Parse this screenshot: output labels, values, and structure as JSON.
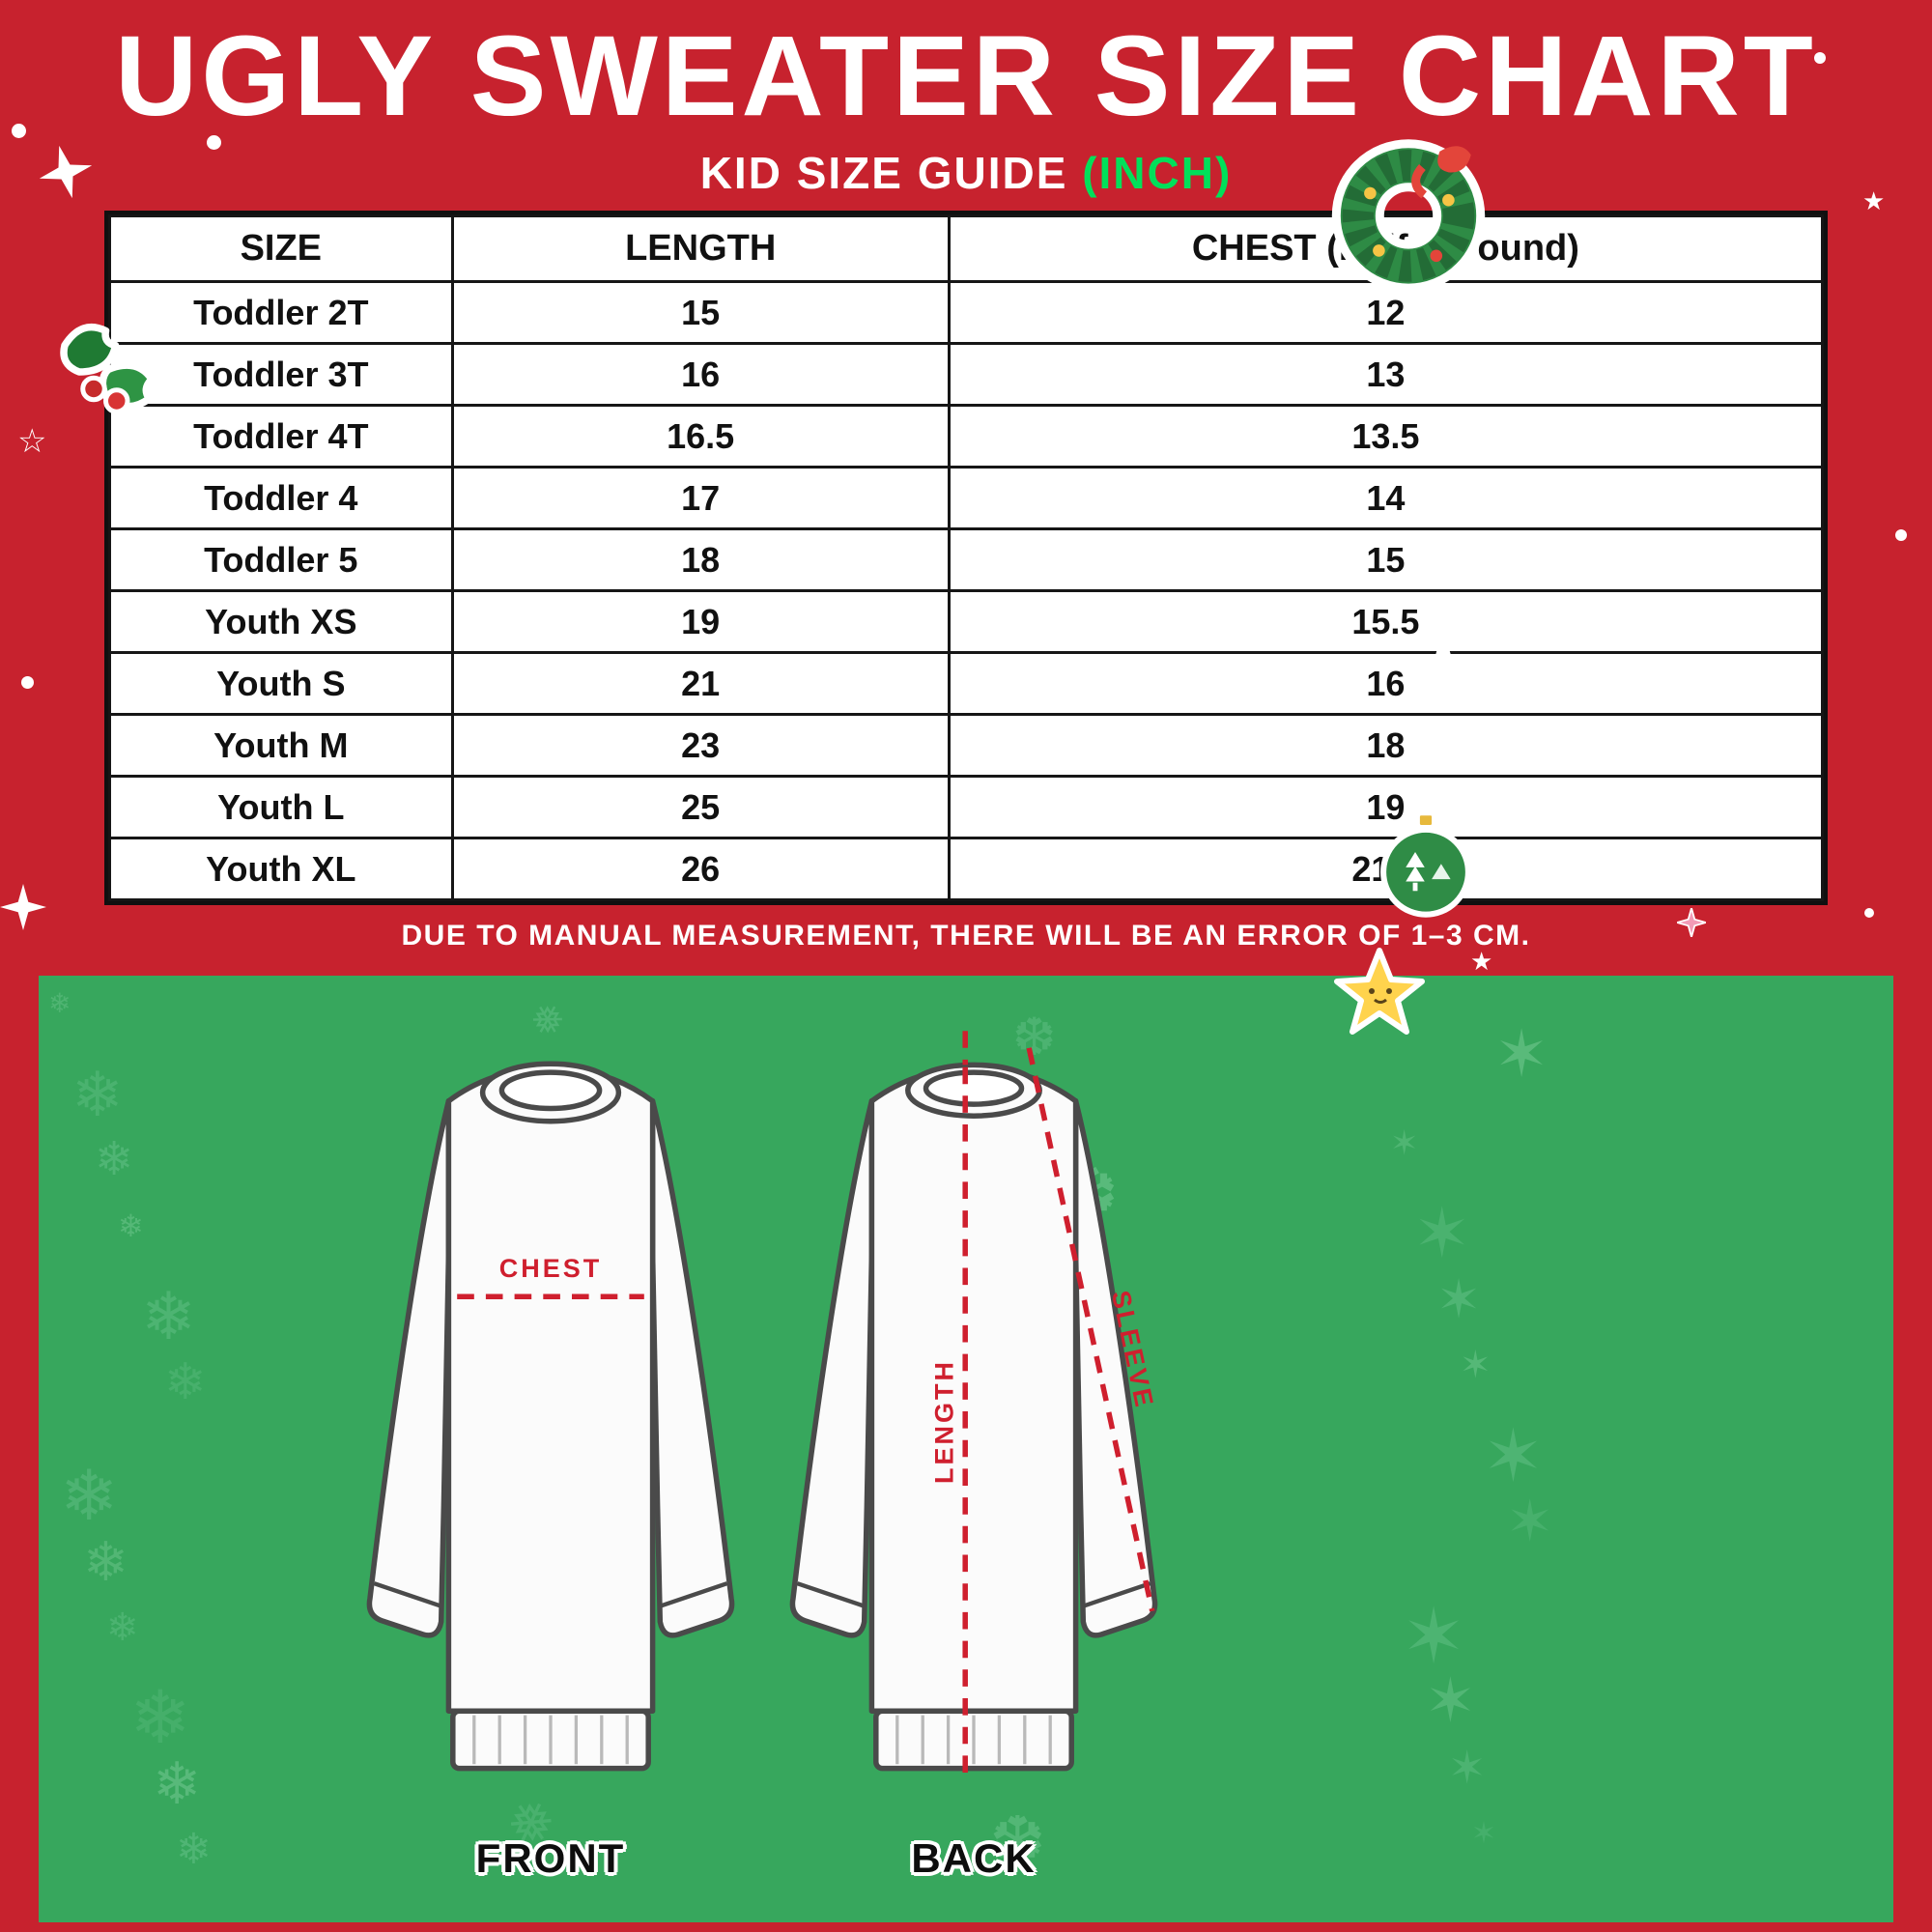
{
  "page": {
    "title": "UGLY SWEATER SIZE CHART",
    "subtitle": "KID SIZE GUIDE",
    "subtitle_unit": "(INCH)",
    "note": "DUE TO MANUAL MEASUREMENT, THERE WILL BE AN ERROR OF 1–3 CM.",
    "colors": {
      "background_red": "#c7222e",
      "accent_green": "#00e05a",
      "banner_green": "#37a75d",
      "pattern_green_light": "#86d4a2",
      "pattern_green_dark": "#65c289",
      "measure_red": "#cf1f2e",
      "table_border": "#161616"
    }
  },
  "chart_data": {
    "type": "table",
    "title": "UGLY SWEATER SIZE CHART — KID SIZE GUIDE (INCH)",
    "columns": [
      "SIZE",
      "LENGTH",
      "CHEST (Half of round)"
    ],
    "rows": [
      [
        "Toddler 2T",
        "15",
        "12"
      ],
      [
        "Toddler 3T",
        "16",
        "13"
      ],
      [
        "Toddler 4T",
        "16.5",
        "13.5"
      ],
      [
        "Toddler 4",
        "17",
        "14"
      ],
      [
        "Toddler 5",
        "18",
        "15"
      ],
      [
        "Youth XS",
        "19",
        "15.5"
      ],
      [
        "Youth S",
        "21",
        "16"
      ],
      [
        "Youth M",
        "23",
        "18"
      ],
      [
        "Youth L",
        "25",
        "19"
      ],
      [
        "Youth XL",
        "26",
        "21.5"
      ]
    ],
    "units": "inch"
  },
  "diagram": {
    "front_label": "FRONT",
    "back_label": "BACK",
    "chest_label": "CHEST",
    "length_label": "LENGTH",
    "sleeve_label": "SLEEVE"
  },
  "icons": {
    "snowflake": "❄",
    "star": "★",
    "star_outline": "☆",
    "pattern_glyphs": [
      "❄",
      "❅",
      "❆",
      "✶"
    ]
  }
}
